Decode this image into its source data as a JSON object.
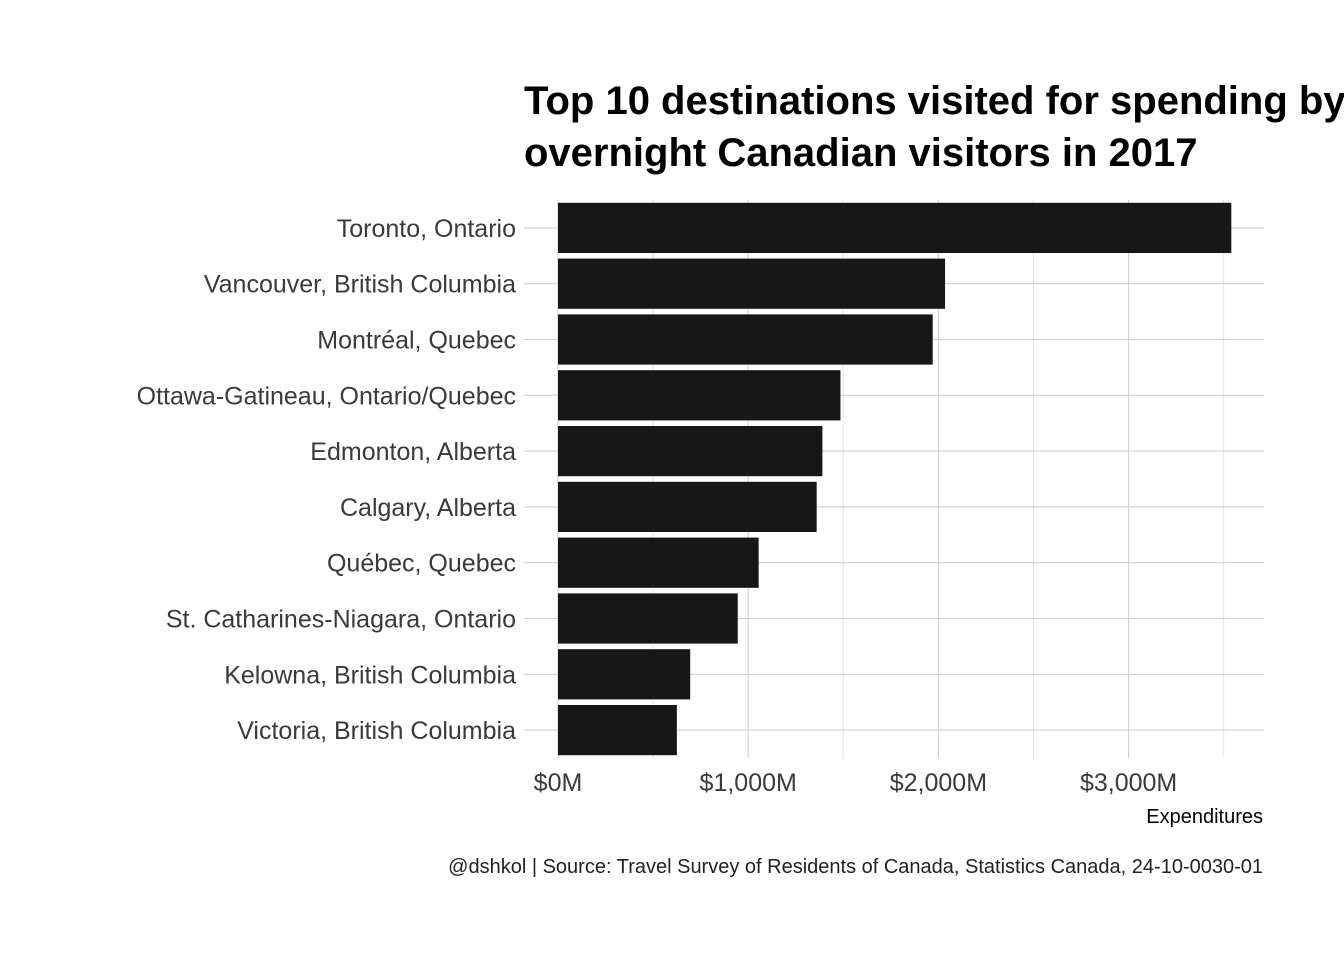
{
  "chart_data": {
    "type": "bar",
    "orientation": "horizontal",
    "title_lines": [
      "Top 10 destinations visited for spending by",
      "overnight Canadian visitors in 2017"
    ],
    "categories": [
      "Toronto, Ontario",
      "Vancouver, British Columbia",
      "Montréal, Quebec",
      "Ottawa-Gatineau, Ontario/Quebec",
      "Edmonton, Alberta",
      "Calgary, Alberta",
      "Québec, Quebec",
      "St. Catharines-Niagara, Ontario",
      "Kelowna, British Columbia",
      "Victoria, British Columbia"
    ],
    "values": [
      3540,
      2035,
      1970,
      1485,
      1390,
      1360,
      1055,
      945,
      695,
      625
    ],
    "xlim": [
      0,
      3700
    ],
    "x_ticks": [
      0,
      1000,
      2000,
      3000
    ],
    "x_tick_labels": [
      "$0M",
      "$1,000M",
      "$2,000M",
      "$3,000M"
    ],
    "xlabel": "Expenditures",
    "ylabel": "",
    "grid": true,
    "legend": "none",
    "caption": "@dshkol | Source: Travel Survey of Residents of Canada, Statistics Canada, 24-10-0030-01",
    "bar_color": "#171717"
  }
}
